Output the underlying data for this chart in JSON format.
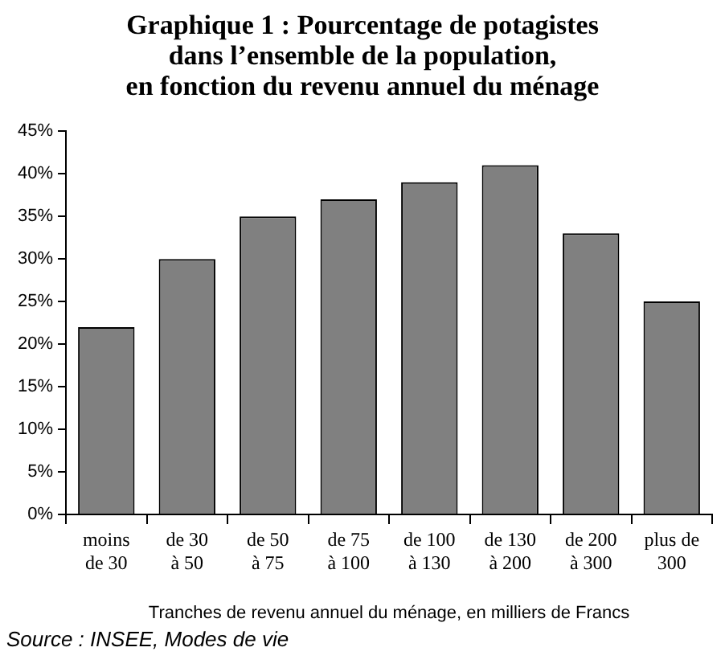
{
  "chart_data": {
    "type": "bar",
    "title": "Graphique 1 : Pourcentage de potagistes\ndans l’ensemble de la population,\nen fonction du revenu annuel du ménage",
    "categories": [
      "moins\nde 30",
      "de 30\nà 50",
      "de 50\nà 75",
      "de 75\nà 100",
      "de 100\nà 130",
      "de 130\nà 200",
      "de 200\nà 300",
      "plus de\n300"
    ],
    "values": [
      22,
      30,
      35,
      37,
      39,
      41,
      33,
      25
    ],
    "color": "#808080",
    "ylim": [
      0,
      45
    ],
    "yticks": [
      {
        "value": 0,
        "label": "0%"
      },
      {
        "value": 5,
        "label": "5%"
      },
      {
        "value": 10,
        "label": "10%"
      },
      {
        "value": 15,
        "label": "15%"
      },
      {
        "value": 20,
        "label": "20%"
      },
      {
        "value": 25,
        "label": "25%"
      },
      {
        "value": 30,
        "label": "30%"
      },
      {
        "value": 35,
        "label": "35%"
      },
      {
        "value": 40,
        "label": "40%"
      },
      {
        "value": 45,
        "label": "45%"
      }
    ],
    "xlabel": "Tranches de revenu annuel du ménage, en milliers de Francs",
    "annotations": [
      "Source : INSEE, Modes de vie"
    ],
    "grid": false,
    "legend": false
  }
}
